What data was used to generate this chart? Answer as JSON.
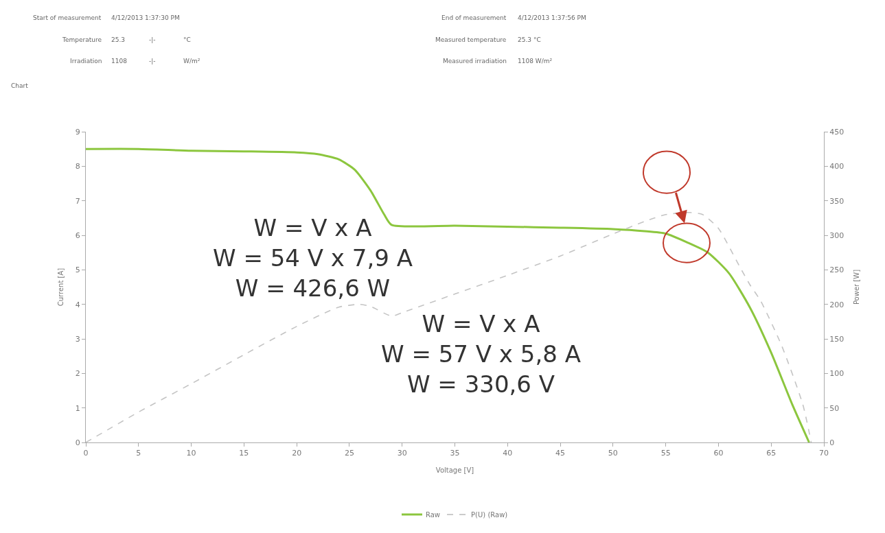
{
  "chart_data": {
    "type": "line",
    "xlabel": "Voltage [V]",
    "ylabel": "Current [A]",
    "y2label": "Power [W]",
    "xlim": [
      0,
      70
    ],
    "xticks": [
      0,
      5,
      10,
      15,
      20,
      25,
      30,
      35,
      40,
      45,
      50,
      55,
      60,
      65,
      70
    ],
    "ylim": [
      0,
      9
    ],
    "yticks": [
      0,
      1,
      2,
      3,
      4,
      5,
      6,
      7,
      8,
      9
    ],
    "y2lim": [
      0,
      450
    ],
    "y2ticks": [
      0,
      50,
      100,
      150,
      200,
      250,
      300,
      350,
      400,
      450
    ],
    "legend": "bottom",
    "marker": "none",
    "series": [
      {
        "name": "Raw",
        "color": "#8cc63e",
        "line_style": "solid",
        "x": [
          0,
          5,
          10,
          15,
          20,
          22,
          24,
          25.5,
          27,
          28.3,
          29,
          35,
          40,
          45,
          50,
          53,
          55,
          57,
          59,
          61,
          63,
          65,
          67,
          68.6
        ],
        "values": [
          8.5,
          8.5,
          8.45,
          8.43,
          8.4,
          8.35,
          8.2,
          7.9,
          7.3,
          6.6,
          6.3,
          6.28,
          6.25,
          6.22,
          6.18,
          6.12,
          6.05,
          5.8,
          5.5,
          4.9,
          3.9,
          2.6,
          1.1,
          0
        ]
      },
      {
        "name": "P(U) (Raw)",
        "color": "#c4c4c4",
        "line_style": "dashed",
        "axis": "y2",
        "x": [
          0,
          5,
          10,
          15,
          20,
          24,
          26,
          27,
          29,
          30,
          35,
          40,
          45,
          50,
          53,
          55,
          57.3,
          58.5,
          60,
          62,
          63,
          64,
          66,
          68,
          68.8
        ],
        "values": [
          0,
          44,
          85,
          127,
          168,
          196,
          200,
          197,
          183,
          188,
          215,
          242,
          270,
          302,
          320,
          330,
          333,
          330,
          310,
          255,
          228,
          205,
          140,
          55,
          0
        ]
      }
    ],
    "annotations": [
      "Start of measurement",
      "4/12/2013 1:37:30 PM",
      "Temperature",
      "25.3",
      "-|-",
      "°C",
      "Irradiation",
      "1108",
      "-|-",
      "W/m²",
      "End of measurement",
      "4/12/2013 1:37:56 PM",
      "Measured temperature",
      "25.3 °C",
      "Measured irradiation",
      "1108 W/m²",
      "Chart",
      "W = V x A\nW = 54 V x 7,9 A\nW = 426,6 W",
      "W = V x A\nW = 57 V x 5,8 A\nW = 330,6 V"
    ]
  }
}
